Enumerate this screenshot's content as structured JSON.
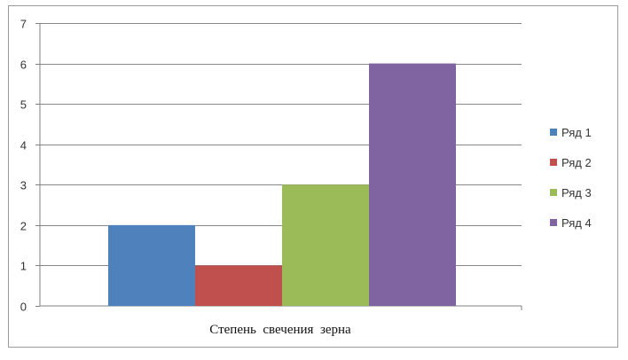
{
  "chart_data": {
    "type": "bar",
    "title": "",
    "xlabel": "",
    "ylabel": "",
    "categories": [
      "Степень  свечения  зерна"
    ],
    "series": [
      {
        "name": "Ряд 1",
        "values": [
          2
        ],
        "color": "#4f81bd"
      },
      {
        "name": "Ряд 2",
        "values": [
          1
        ],
        "color": "#c0504d"
      },
      {
        "name": "Ряд 3",
        "values": [
          3
        ],
        "color": "#9bbb59"
      },
      {
        "name": "Ряд 4",
        "values": [
          6
        ],
        "color": "#8064a2"
      }
    ],
    "ylim": [
      0,
      7
    ],
    "yticks": [
      0,
      1,
      2,
      3,
      4,
      5,
      6,
      7
    ],
    "grid": true,
    "legend_position": "right"
  }
}
